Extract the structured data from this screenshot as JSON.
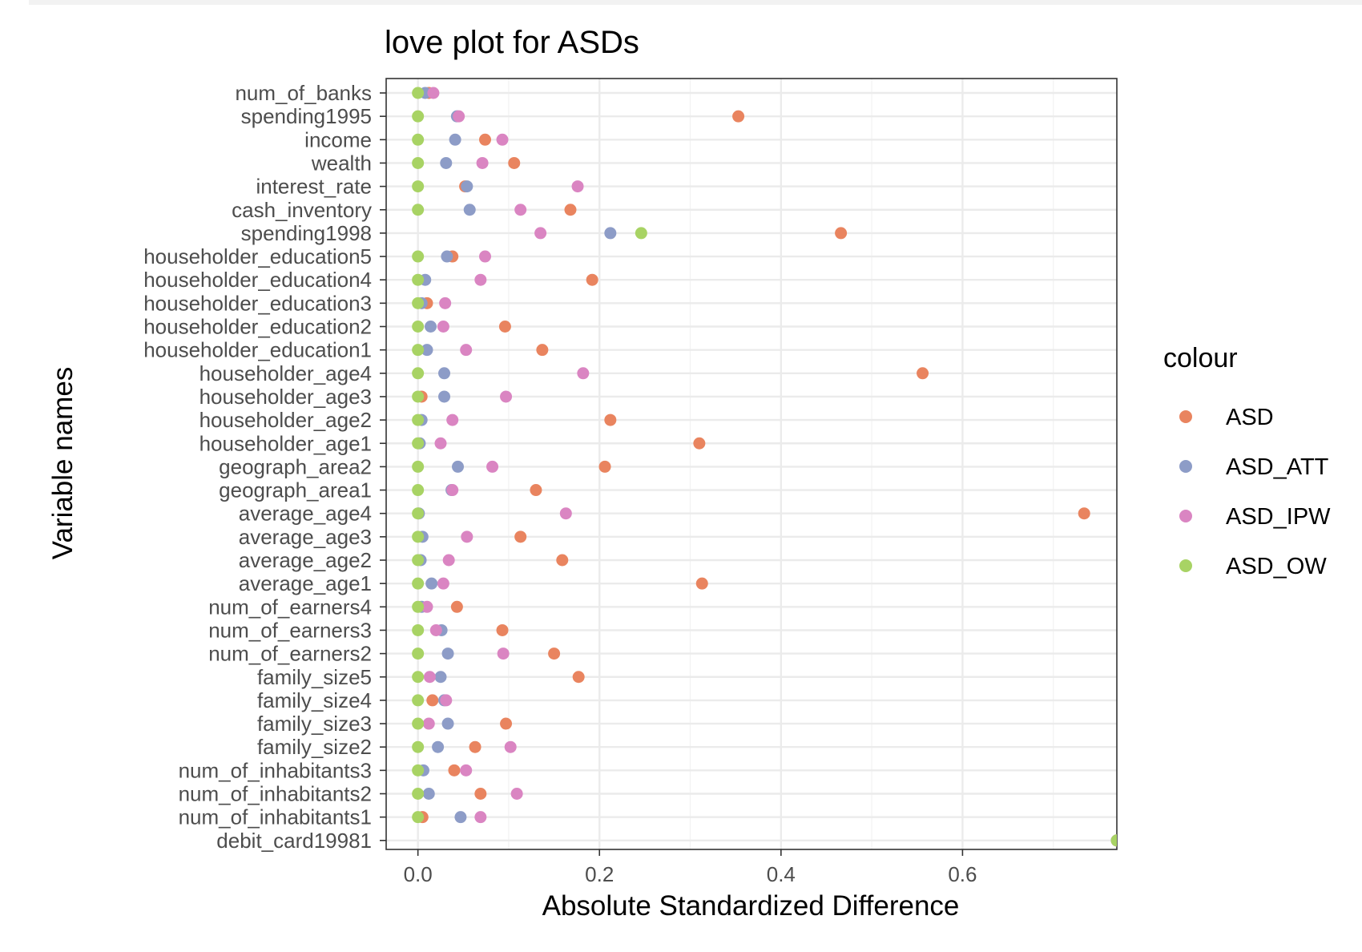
{
  "chart_data": {
    "type": "scatter",
    "title": "love plot for ASDs",
    "xlabel": "Absolute Standardized Difference",
    "ylabel": "Variable names",
    "xlim": [
      -0.035,
      0.77
    ],
    "xticks": [
      "0.0",
      "0.2",
      "0.4",
      "0.6"
    ],
    "xtick_values": [
      0.0,
      0.2,
      0.4,
      0.6
    ],
    "grid": true,
    "legend": {
      "title": "colour",
      "placement": "right"
    },
    "categories": [
      "num_of_banks",
      "spending1995",
      "income",
      "wealth",
      "interest_rate",
      "cash_inventory",
      "spending1998",
      "householder_education5",
      "householder_education4",
      "householder_education3",
      "householder_education2",
      "householder_education1",
      "householder_age4",
      "householder_age3",
      "householder_age2",
      "householder_age1",
      "geograph_area2",
      "geograph_area1",
      "average_age4",
      "average_age3",
      "average_age2",
      "average_age1",
      "num_of_earners4",
      "num_of_earners3",
      "num_of_earners2",
      "family_size5",
      "family_size4",
      "family_size3",
      "family_size2",
      "num_of_inhabitants3",
      "num_of_inhabitants2",
      "num_of_inhabitants1",
      "debit_card19981"
    ],
    "series": [
      {
        "name": "ASD",
        "color": "#E9845F",
        "values": [
          0.012,
          0.353,
          0.074,
          0.106,
          0.052,
          0.168,
          0.466,
          0.038,
          0.192,
          0.01,
          0.096,
          0.137,
          0.556,
          0.004,
          0.212,
          0.31,
          0.206,
          0.13,
          0.734,
          0.113,
          0.159,
          0.313,
          0.043,
          0.093,
          0.15,
          0.177,
          0.016,
          0.097,
          0.063,
          0.04,
          0.069,
          0.005,
          0.77
        ]
      },
      {
        "name": "ASD_ATT",
        "color": "#8D9CC7",
        "values": [
          0.008,
          0.043,
          0.041,
          0.031,
          0.054,
          0.057,
          0.212,
          0.032,
          0.008,
          0.004,
          0.014,
          0.01,
          0.029,
          0.029,
          0.004,
          0.002,
          0.044,
          0.037,
          0.001,
          0.005,
          0.003,
          0.015,
          0.004,
          0.026,
          0.033,
          0.025,
          0.029,
          0.033,
          0.022,
          0.006,
          0.012,
          0.047,
          0.77
        ]
      },
      {
        "name": "ASD_IPW",
        "color": "#DA85C2",
        "values": [
          0.017,
          0.045,
          0.093,
          0.071,
          0.176,
          0.113,
          0.135,
          0.074,
          0.069,
          0.03,
          0.028,
          0.053,
          0.182,
          0.097,
          0.038,
          0.025,
          0.082,
          0.038,
          0.163,
          0.054,
          0.034,
          0.028,
          0.01,
          0.02,
          0.094,
          0.013,
          0.031,
          0.012,
          0.102,
          0.053,
          0.109,
          0.069,
          0.77
        ]
      },
      {
        "name": "ASD_OW",
        "color": "#A8D364",
        "values": [
          0.0,
          0.0,
          0.0,
          0.0,
          0.0,
          0.0,
          0.246,
          0.0,
          0.0,
          0.0,
          0.0,
          0.0,
          0.0,
          0.0,
          0.0,
          0.0,
          0.0,
          0.0,
          0.0,
          0.0,
          0.0,
          0.0,
          0.0,
          0.0,
          0.0,
          0.0,
          0.0,
          0.0,
          0.0,
          0.0,
          0.0,
          0.0,
          0.77
        ]
      }
    ]
  }
}
